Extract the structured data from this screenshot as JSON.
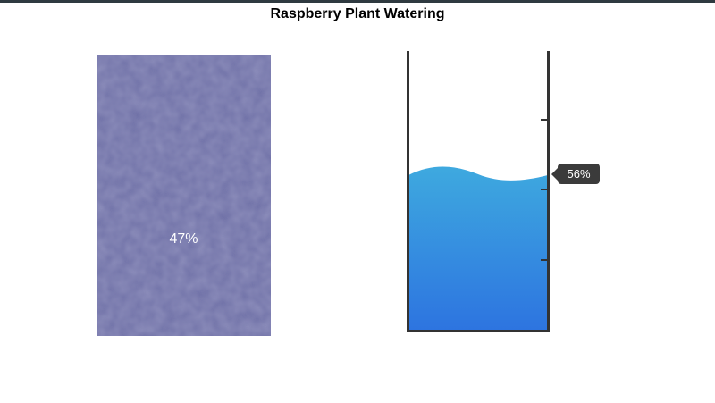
{
  "title": "Raspberry Plant Watering",
  "soil": {
    "moisture_label": "47%",
    "moisture_fraction": 0.47,
    "color": "#686aa4"
  },
  "tank": {
    "level_label": "56%",
    "level_fraction": 0.56,
    "water_color_top": "#3ea9df",
    "water_color_bottom": "#2d74e0",
    "wall_color": "#333333"
  }
}
